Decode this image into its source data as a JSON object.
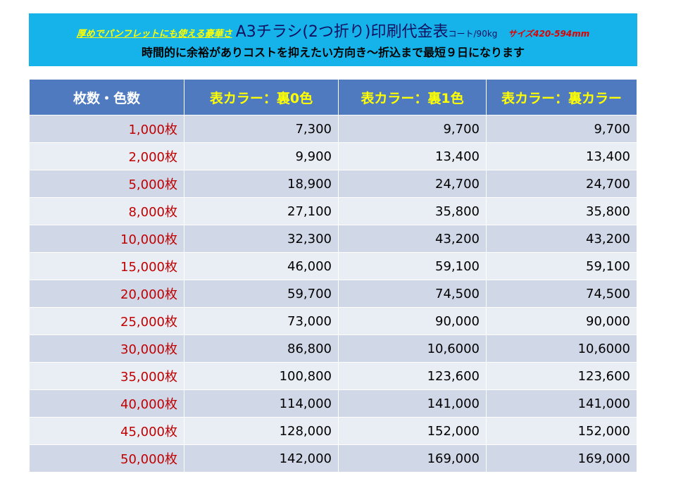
{
  "header": {
    "lead": "厚めでパンフレットにも使える豪華さ",
    "title": "A3チラシ(2つ折り)印刷代金表",
    "paper": "コート/90kg",
    "size": "サイズ420-594mm",
    "subtitle": "時間的に余裕がありコストを抑えたい方向き～折込まで最短９日になります"
  },
  "table": {
    "columns": [
      "枚数・色数",
      "表カラー：裏0色",
      "表カラー：裏1色",
      "表カラー：裏カラー"
    ],
    "rows": [
      {
        "qty": "1,000枚",
        "c1": "7,300",
        "c2": "9,700",
        "c3": "9,700"
      },
      {
        "qty": "2,000枚",
        "c1": "9,900",
        "c2": "13,400",
        "c3": "13,400"
      },
      {
        "qty": "5,000枚",
        "c1": "18,900",
        "c2": "24,700",
        "c3": "24,700"
      },
      {
        "qty": "8,000枚",
        "c1": "27,100",
        "c2": "35,800",
        "c3": "35,800"
      },
      {
        "qty": "10,000枚",
        "c1": "32,300",
        "c2": "43,200",
        "c3": "43,200"
      },
      {
        "qty": "15,000枚",
        "c1": "46,000",
        "c2": "59,100",
        "c3": "59,100"
      },
      {
        "qty": "20,000枚",
        "c1": "59,700",
        "c2": "74,500",
        "c3": "74,500"
      },
      {
        "qty": "25,000枚",
        "c1": "73,000",
        "c2": "90,000",
        "c3": "90,000"
      },
      {
        "qty": "30,000枚",
        "c1": "86,800",
        "c2": "10,6000",
        "c3": "10,6000"
      },
      {
        "qty": "35,000枚",
        "c1": "100,800",
        "c2": "123,600",
        "c3": "123,600"
      },
      {
        "qty": "40,000枚",
        "c1": "114,000",
        "c2": "141,000",
        "c3": "141,000"
      },
      {
        "qty": "45,000枚",
        "c1": "128,000",
        "c2": "152,000",
        "c3": "152,000"
      },
      {
        "qty": "50,000枚",
        "c1": "142,000",
        "c2": "169,000",
        "c3": "169,000"
      }
    ]
  },
  "colors": {
    "banner": "#15b3ea",
    "header_row": "#4f7ac0",
    "row_dark": "#d0d8e8",
    "row_light": "#e9edf4",
    "qty_text": "#c00000",
    "column_header_text": "#ffff00"
  }
}
